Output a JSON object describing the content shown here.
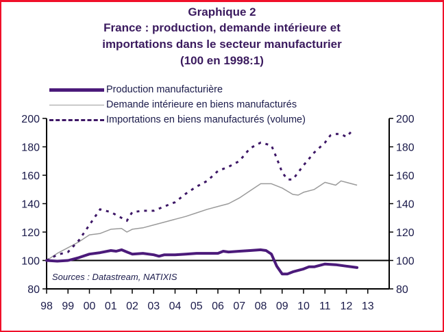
{
  "header": {
    "line1": "Graphique 2",
    "line2": "France : production, demande intérieure et",
    "line3": "importations dans le secteur manufacturier",
    "line4": "(100 en 1998:1)"
  },
  "colors": {
    "frame": "#f0102a",
    "production": "#4b1a7a",
    "demande": "#9a9a9a",
    "importations": "#3d1766",
    "axis": "#000000",
    "text": "#1a1a4a"
  },
  "chart_data": {
    "type": "line",
    "title": "France : production, demande intérieure et importations dans le secteur manufacturier (100 en 1998:1)",
    "xlabel": "",
    "ylabel": "",
    "x_ticks": [
      "98",
      "99",
      "00",
      "01",
      "02",
      "03",
      "04",
      "05",
      "06",
      "07",
      "08",
      "09",
      "10",
      "11",
      "12",
      "13"
    ],
    "xlim": [
      1998,
      2014
    ],
    "ylim": [
      80,
      200
    ],
    "y_ticks_left": [
      "200",
      "180",
      "160",
      "140",
      "120",
      "100",
      "80"
    ],
    "y_ticks_right": [
      "200",
      "180",
      "160",
      "140",
      "120",
      "100",
      "80"
    ],
    "reference_line": 100,
    "legend_position": "top-left",
    "source": "Sources : Datastream, NATIXIS",
    "series": [
      {
        "name": "Production manufacturière",
        "style": "thick-solid",
        "x": [
          1998.0,
          1998.5,
          1999.0,
          1999.5,
          2000.0,
          2000.5,
          2001.0,
          2001.25,
          2001.5,
          2001.75,
          2002.0,
          2002.5,
          2003.0,
          2003.25,
          2003.5,
          2004.0,
          2004.5,
          2005.0,
          2005.5,
          2006.0,
          2006.25,
          2006.5,
          2007.0,
          2007.5,
          2008.0,
          2008.25,
          2008.5,
          2008.75,
          2009.0,
          2009.25,
          2009.5,
          2010.0,
          2010.25,
          2010.5,
          2011.0,
          2011.5,
          2012.0,
          2012.5
        ],
        "y": [
          100,
          99.5,
          100,
          102,
          104.5,
          105.5,
          107,
          106.5,
          107.5,
          106,
          104.5,
          105,
          104,
          103,
          104,
          104,
          104.5,
          105,
          105,
          105,
          106.5,
          106,
          106.5,
          107,
          107.5,
          107,
          104.5,
          96,
          90.5,
          90.5,
          92,
          94,
          95.5,
          95.5,
          97.5,
          97,
          96,
          95
        ]
      },
      {
        "name": "Demande intérieure en biens manufacturés",
        "style": "thin-solid",
        "x": [
          1998.0,
          1998.5,
          1999.0,
          1999.5,
          2000.0,
          2000.5,
          2001.0,
          2001.5,
          2001.75,
          2002.0,
          2002.5,
          2003.0,
          2003.5,
          2004.0,
          2004.5,
          2005.0,
          2005.5,
          2006.0,
          2006.5,
          2007.0,
          2007.5,
          2008.0,
          2008.5,
          2009.0,
          2009.5,
          2009.75,
          2010.0,
          2010.5,
          2011.0,
          2011.5,
          2011.75,
          2012.0,
          2012.5
        ],
        "y": [
          100,
          105,
          109,
          113,
          118,
          119,
          122,
          122.5,
          120,
          122,
          123,
          125,
          127,
          129,
          131,
          133.5,
          136,
          138,
          140,
          144,
          149,
          154,
          154,
          151,
          146.5,
          146,
          148,
          150,
          155,
          153,
          156,
          155,
          153
        ]
      },
      {
        "name": "Importations en biens manufacturés (volume)",
        "style": "dotted",
        "x": [
          1998.0,
          1998.5,
          1999.0,
          1999.5,
          2000.0,
          2000.5,
          2001.0,
          2001.5,
          2001.75,
          2002.0,
          2002.5,
          2003.0,
          2003.5,
          2004.0,
          2004.5,
          2005.0,
          2005.5,
          2006.0,
          2006.5,
          2007.0,
          2007.5,
          2008.0,
          2008.5,
          2008.75,
          2009.0,
          2009.25,
          2009.5,
          2009.75,
          2010.0,
          2010.5,
          2011.0,
          2011.25,
          2011.5,
          2011.75,
          2012.0,
          2012.25
        ],
        "y": [
          100,
          104,
          106,
          114,
          125,
          136,
          134,
          130,
          128,
          134,
          135,
          135,
          138,
          141,
          147,
          152,
          156,
          163,
          166,
          170,
          179,
          183,
          181,
          172,
          162,
          157,
          157,
          162,
          167,
          176,
          183,
          188,
          189,
          189,
          187,
          191
        ]
      }
    ]
  }
}
